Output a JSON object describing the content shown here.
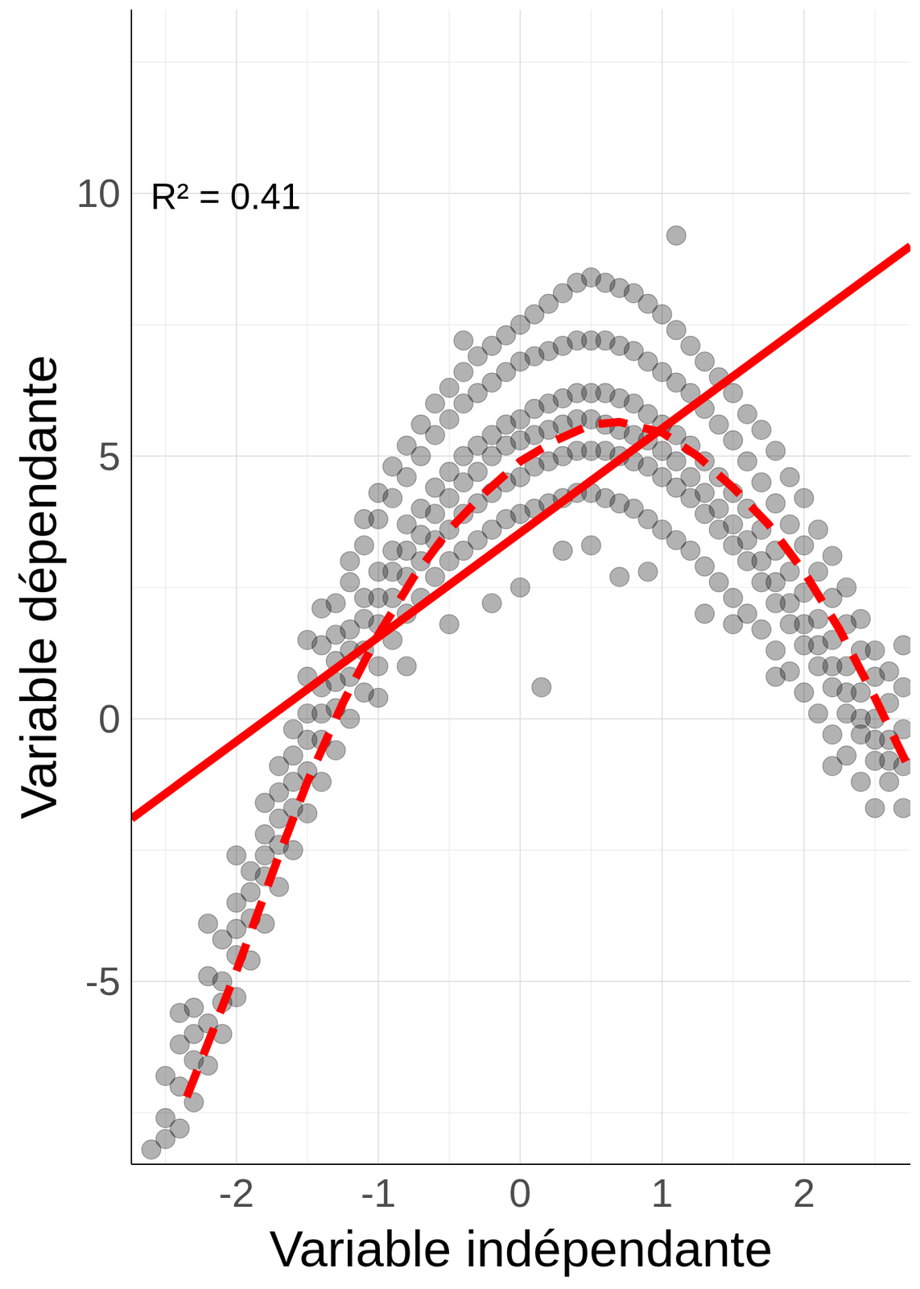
{
  "chart_data": {
    "type": "scatter",
    "x_label": "Variable indépendante",
    "y_label": "Variable dépendante",
    "annotations": [
      "R² = 0.41"
    ],
    "xlim": [
      -2.74,
      2.75
    ],
    "ylim": [
      -8.48,
      13.5
    ],
    "xticks": [
      -2,
      -1,
      0,
      1,
      2
    ],
    "yticks": [
      -5,
      0,
      5,
      10
    ],
    "grid": true,
    "series": [
      {
        "type": "scatter",
        "color": "#000000",
        "marker": "circle",
        "x": [
          -2.6,
          -2.5,
          -2.5,
          -2.5,
          -2.4,
          -2.4,
          -2.4,
          -2.4,
          -2.3,
          -2.3,
          -2.3,
          -2.3,
          -2.2,
          -2.2,
          -2.2,
          -2.2,
          -2.1,
          -2.1,
          -2.1,
          -2.1,
          -2.0,
          -2.0,
          -2.0,
          -2.0,
          -2.0,
          -1.9,
          -1.9,
          -1.9,
          -1.9,
          -1.8,
          -1.8,
          -1.8,
          -1.8,
          -1.8,
          -1.7,
          -1.7,
          -1.7,
          -1.7,
          -1.7,
          -1.6,
          -1.6,
          -1.6,
          -1.6,
          -1.6,
          -1.5,
          -1.5,
          -1.5,
          -1.5,
          -1.5,
          -1.5,
          -1.4,
          -1.4,
          -1.4,
          -1.4,
          -1.4,
          -1.4,
          -1.3,
          -1.3,
          -1.3,
          -1.3,
          -1.3,
          -1.3,
          -1.2,
          -1.2,
          -1.2,
          -1.2,
          -1.2,
          -1.2,
          -1.1,
          -1.1,
          -1.1,
          -1.1,
          -1.1,
          -1.1,
          -1.0,
          -1.0,
          -1.0,
          -1.0,
          -1.0,
          -1.0,
          -1.0,
          -0.9,
          -0.9,
          -0.9,
          -0.9,
          -0.9,
          -0.9,
          -0.8,
          -0.8,
          -0.8,
          -0.8,
          -0.8,
          -0.8,
          -0.8,
          -0.7,
          -0.7,
          -0.7,
          -0.7,
          -0.7,
          -0.7,
          -0.6,
          -0.6,
          -0.6,
          -0.6,
          -0.6,
          -0.6,
          -0.5,
          -0.5,
          -0.5,
          -0.5,
          -0.5,
          -0.5,
          -0.5,
          -0.4,
          -0.4,
          -0.4,
          -0.4,
          -0.4,
          -0.4,
          -0.4,
          -0.3,
          -0.3,
          -0.3,
          -0.3,
          -0.3,
          -0.3,
          -0.2,
          -0.2,
          -0.2,
          -0.2,
          -0.2,
          -0.2,
          -0.2,
          -0.1,
          -0.1,
          -0.1,
          -0.1,
          -0.1,
          -0.1,
          0.0,
          0.0,
          0.0,
          0.0,
          0.0,
          0.0,
          0.0,
          0.1,
          0.1,
          0.1,
          0.1,
          0.1,
          0.1,
          0.15,
          0.2,
          0.2,
          0.2,
          0.2,
          0.2,
          0.2,
          0.3,
          0.3,
          0.3,
          0.3,
          0.3,
          0.3,
          0.3,
          0.4,
          0.4,
          0.4,
          0.4,
          0.4,
          0.4,
          0.5,
          0.5,
          0.5,
          0.5,
          0.5,
          0.5,
          0.5,
          0.6,
          0.6,
          0.6,
          0.6,
          0.6,
          0.6,
          0.7,
          0.7,
          0.7,
          0.7,
          0.7,
          0.7,
          0.7,
          0.8,
          0.8,
          0.8,
          0.8,
          0.8,
          0.8,
          0.9,
          0.9,
          0.9,
          0.9,
          0.9,
          0.9,
          0.9,
          1.0,
          1.0,
          1.0,
          1.0,
          1.0,
          1.0,
          1.1,
          1.1,
          1.1,
          1.1,
          1.1,
          1.1,
          1.1,
          1.2,
          1.2,
          1.2,
          1.2,
          1.2,
          1.2,
          1.3,
          1.3,
          1.3,
          1.3,
          1.3,
          1.3,
          1.3,
          1.4,
          1.4,
          1.4,
          1.4,
          1.4,
          1.4,
          1.5,
          1.5,
          1.5,
          1.5,
          1.5,
          1.5,
          1.5,
          1.6,
          1.6,
          1.6,
          1.6,
          1.6,
          1.6,
          1.7,
          1.7,
          1.7,
          1.7,
          1.7,
          1.7,
          1.8,
          1.8,
          1.8,
          1.8,
          1.8,
          1.8,
          1.8,
          1.9,
          1.9,
          1.9,
          1.9,
          1.9,
          1.9,
          2.0,
          2.0,
          2.0,
          2.0,
          2.0,
          2.0,
          2.1,
          2.1,
          2.1,
          2.1,
          2.1,
          2.1,
          2.2,
          2.2,
          2.2,
          2.2,
          2.2,
          2.2,
          2.2,
          2.3,
          2.3,
          2.3,
          2.3,
          2.3,
          2.3,
          2.4,
          2.4,
          2.4,
          2.4,
          2.4,
          2.4,
          2.5,
          2.5,
          2.5,
          2.5,
          2.5,
          2.5,
          2.6,
          2.6,
          2.6,
          2.6,
          2.6,
          2.7,
          2.7,
          2.7,
          2.7,
          2.7
        ],
        "values": [
          -8.2,
          -7.6,
          -6.8,
          -8.0,
          -7.0,
          -6.2,
          -7.8,
          -5.6,
          -6.5,
          -5.5,
          -7.3,
          -6.0,
          -5.8,
          -4.9,
          -6.6,
          -3.9,
          -5.0,
          -4.2,
          -6.0,
          -5.4,
          -4.5,
          -3.5,
          -5.3,
          -2.6,
          -4.0,
          -3.8,
          -2.9,
          -4.6,
          -3.3,
          -3.0,
          -2.2,
          -3.9,
          -1.6,
          -2.6,
          -2.4,
          -1.4,
          -3.2,
          -1.9,
          -0.9,
          -1.7,
          -0.7,
          -2.5,
          -1.2,
          -0.2,
          -1.0,
          0.1,
          -1.8,
          0.8,
          1.5,
          -0.4,
          -0.4,
          0.6,
          1.4,
          -1.2,
          2.1,
          0.1,
          0.2,
          1.1,
          2.2,
          -0.6,
          1.6,
          0.7,
          0.8,
          1.7,
          2.6,
          0.0,
          3.0,
          1.3,
          1.3,
          2.3,
          3.3,
          0.5,
          3.8,
          1.9,
          1.8,
          2.8,
          3.8,
          1.0,
          4.3,
          2.3,
          0.4,
          2.3,
          3.2,
          4.2,
          1.5,
          4.8,
          2.8,
          2.7,
          3.7,
          4.6,
          2.0,
          5.2,
          3.2,
          1.0,
          3.0,
          4.0,
          5.0,
          2.3,
          5.6,
          3.5,
          3.4,
          4.4,
          5.4,
          2.7,
          6.0,
          3.9,
          3.6,
          4.7,
          5.7,
          3.0,
          6.3,
          4.2,
          1.8,
          3.9,
          5.0,
          6.0,
          3.2,
          6.6,
          4.5,
          7.2,
          4.1,
          5.2,
          6.2,
          3.4,
          6.9,
          4.7,
          4.3,
          5.4,
          6.4,
          3.6,
          7.1,
          5.0,
          2.2,
          4.5,
          5.6,
          6.6,
          3.8,
          7.3,
          5.2,
          4.6,
          5.7,
          6.8,
          3.9,
          7.5,
          5.3,
          2.5,
          4.8,
          5.9,
          6.9,
          4.0,
          7.7,
          5.4,
          0.6,
          4.9,
          6.0,
          7.0,
          4.1,
          7.9,
          5.5,
          5.0,
          6.1,
          7.1,
          4.2,
          8.1,
          5.6,
          3.2,
          5.1,
          6.2,
          7.2,
          4.3,
          8.3,
          5.7,
          5.1,
          6.2,
          7.2,
          4.3,
          8.4,
          5.7,
          3.3,
          5.1,
          6.2,
          7.2,
          4.2,
          8.3,
          5.6,
          5.0,
          6.1,
          7.1,
          4.1,
          8.2,
          5.5,
          2.7,
          4.9,
          6.0,
          7.0,
          4.0,
          8.1,
          5.4,
          4.8,
          5.8,
          6.8,
          3.8,
          7.9,
          5.3,
          2.8,
          4.6,
          5.6,
          6.6,
          3.6,
          7.7,
          5.1,
          4.4,
          5.4,
          6.4,
          3.4,
          7.4,
          4.9,
          9.2,
          4.2,
          5.2,
          6.2,
          3.2,
          7.1,
          4.6,
          3.9,
          4.9,
          5.9,
          2.9,
          6.8,
          4.3,
          2.0,
          3.6,
          4.6,
          5.6,
          2.6,
          6.5,
          4.0,
          3.3,
          4.3,
          5.3,
          2.3,
          6.2,
          3.7,
          1.8,
          3.0,
          4.0,
          4.9,
          2.0,
          5.8,
          3.4,
          2.6,
          3.6,
          4.5,
          1.7,
          5.5,
          3.0,
          2.2,
          3.2,
          4.1,
          1.3,
          5.1,
          2.6,
          0.8,
          1.8,
          2.8,
          3.7,
          0.9,
          4.6,
          2.2,
          1.4,
          2.4,
          3.3,
          0.5,
          4.2,
          1.8,
          1.0,
          1.9,
          2.8,
          0.1,
          3.6,
          1.4,
          0.6,
          1.5,
          2.3,
          -0.3,
          3.1,
          1.0,
          -0.9,
          0.1,
          1.0,
          1.8,
          -0.7,
          2.5,
          0.5,
          -0.3,
          0.5,
          1.3,
          -1.2,
          1.9,
          0.0,
          -0.8,
          0.0,
          0.8,
          -1.7,
          1.3,
          -0.4,
          -1.2,
          -0.4,
          0.3,
          0.9,
          -0.8,
          -1.7,
          -0.9,
          -0.2,
          0.6,
          1.4
        ]
      },
      {
        "type": "line",
        "line_style": "solid",
        "color": "#ff0000",
        "x": [
          -2.74,
          2.75
        ],
        "values": [
          -1.9,
          9.0
        ]
      },
      {
        "type": "line",
        "line_style": "dashed",
        "color": "#ff0000",
        "x": [
          -2.35,
          -2.0,
          -1.7,
          -1.5,
          -1.25,
          -1.0,
          -0.75,
          -0.5,
          -0.25,
          0.0,
          0.25,
          0.5,
          0.7,
          1.0,
          1.25,
          1.5,
          1.75,
          2.0,
          2.25,
          2.5,
          2.75
        ],
        "values": [
          -7.2,
          -4.8,
          -2.6,
          -1.2,
          0.3,
          1.6,
          2.7,
          3.6,
          4.3,
          4.9,
          5.3,
          5.6,
          5.65,
          5.45,
          5.0,
          4.4,
          3.7,
          2.8,
          1.7,
          0.4,
          -1.0
        ]
      }
    ]
  }
}
